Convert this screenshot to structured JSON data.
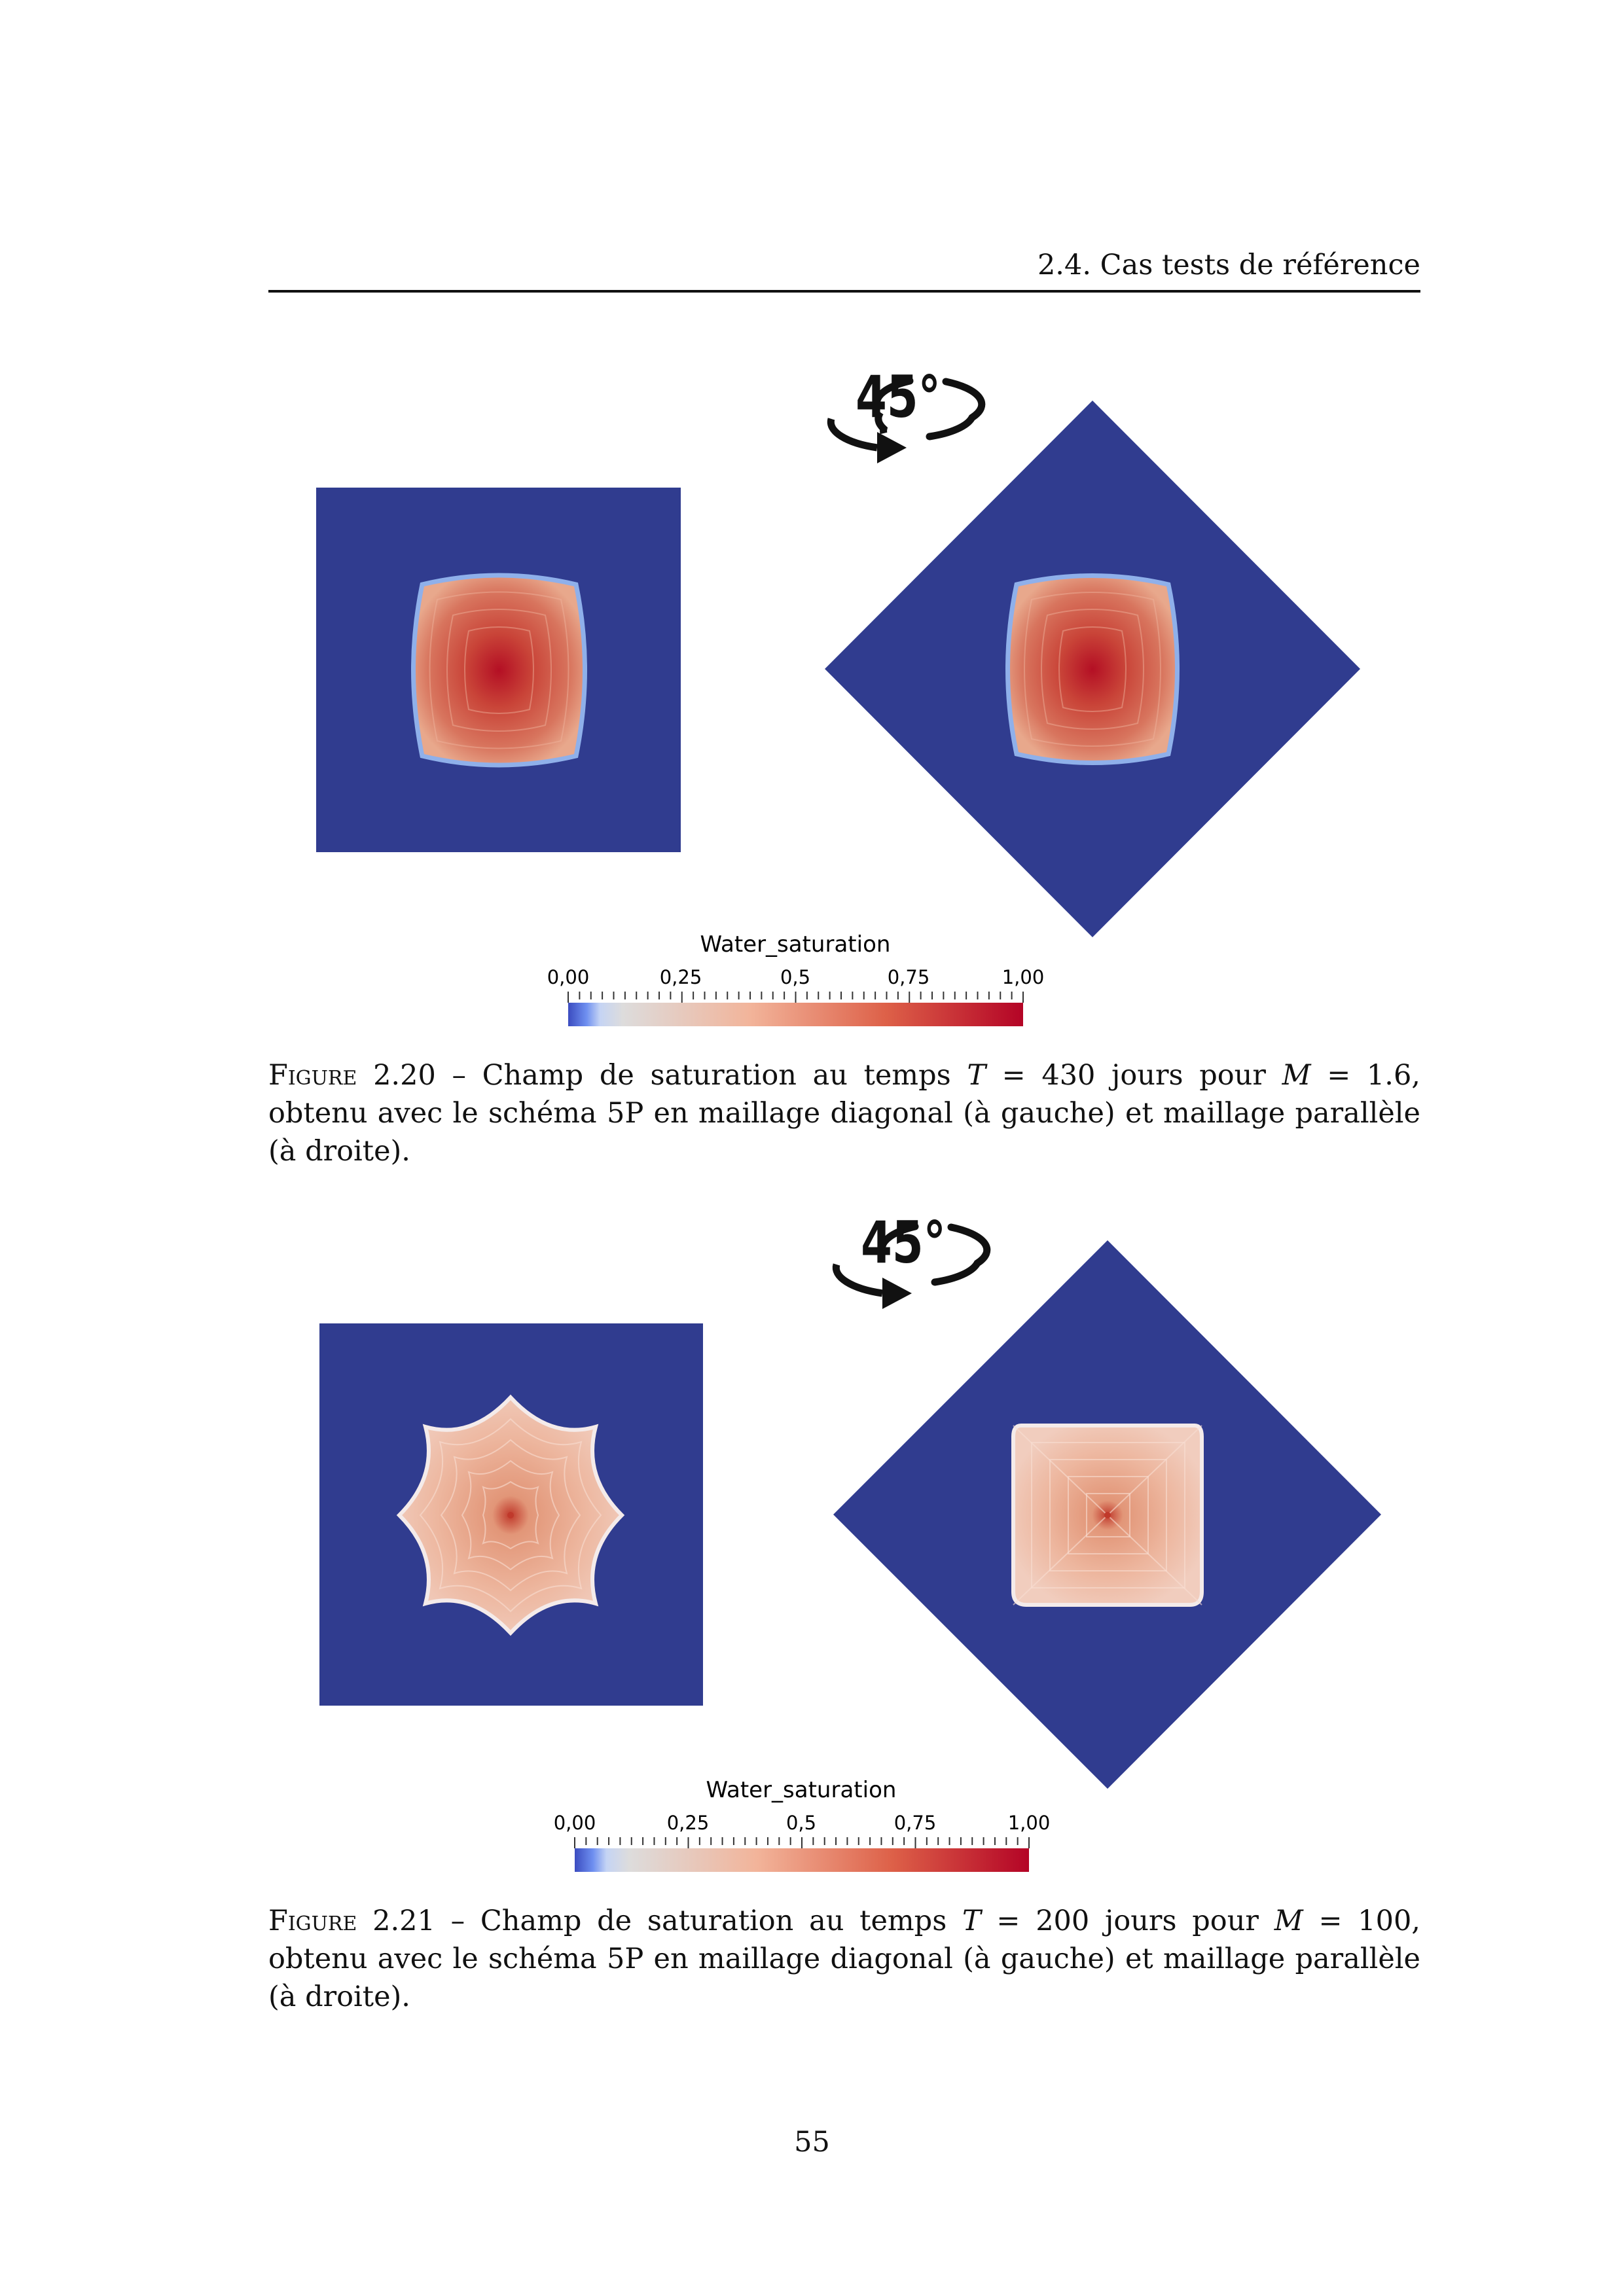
{
  "header": {
    "running_title": "2.4.  Cas tests de référence"
  },
  "rotation_label": "45°",
  "figures": [
    {
      "colorbar": {
        "title": "Water_saturation",
        "ticks": [
          "0,00",
          "0,25",
          "0,5",
          "0,75",
          "1,00"
        ]
      },
      "caption": {
        "label": "Figure 2.20",
        "sep": " – ",
        "text_a": "Champ de saturation au temps ",
        "var_t": "T",
        "text_b": " = 430 jours pour ",
        "var_m": "M",
        "text_c": " = 1.6, obtenu avec le schéma 5P en maillage diagonal (à gauche) et maillage parallèle (à droite)."
      }
    },
    {
      "colorbar": {
        "title": "Water_saturation",
        "ticks": [
          "0,00",
          "0,25",
          "0,5",
          "0,75",
          "1,00"
        ]
      },
      "caption": {
        "label": "Figure 2.21",
        "sep": " – ",
        "text_a": "Champ de saturation au temps ",
        "var_t": "T",
        "text_b": " = 200 jours pour ",
        "var_m": "M",
        "text_c": " = 100, obtenu avec le schéma 5P en maillage diagonal (à gauche) et maillage parallèle (à droite)."
      }
    }
  ],
  "colors": {
    "domain": "#303C8F",
    "front_edge": "#8FB0EA",
    "low": "#3A52CC",
    "mid": "#DDDCDC",
    "high": "#B40426"
  },
  "page_number": "55"
}
